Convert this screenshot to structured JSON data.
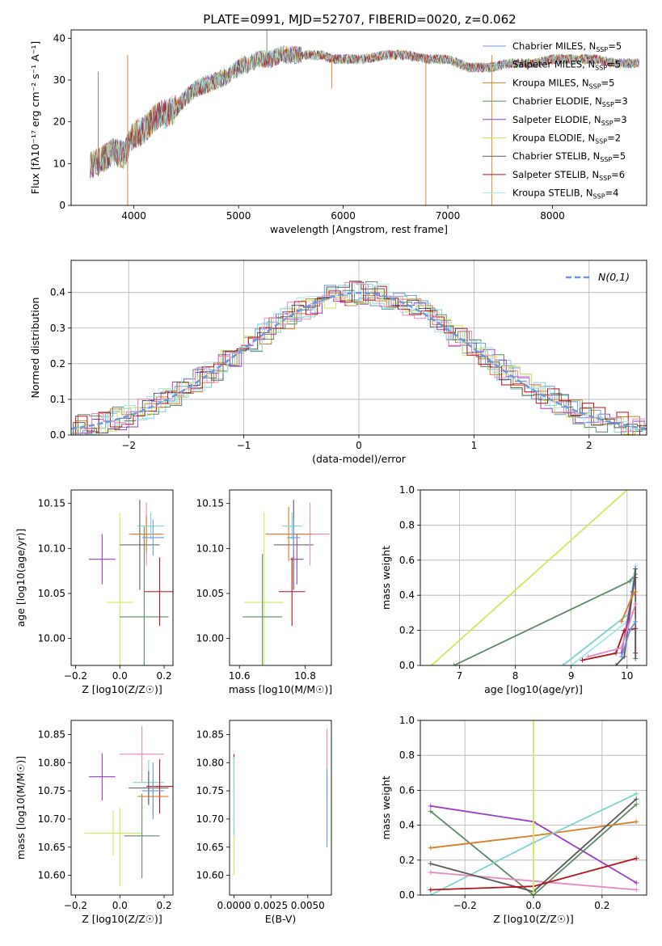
{
  "title": "PLATE=0991, MJD=52707, FIBERID=0020, z=0.062",
  "colors": [
    "#6a9bd8",
    "#7fd3d0",
    "#d57f2a",
    "#5e8a67",
    "#9b3fbf",
    "#cfe85a",
    "#5a5a5a",
    "#b5141b",
    "#a5e6f0",
    "#e48bbf"
  ],
  "chart_data": [
    {
      "id": "spectrum",
      "type": "line",
      "xlabel": "wavelength [Angstrom, rest frame]",
      "ylabel": "Flux [fλ10⁻¹⁷ erg cm⁻² s⁻¹ A⁻¹]",
      "xlim": [
        3400,
        8900
      ],
      "ylim": [
        0,
        42
      ],
      "xticks": [
        "4000",
        "5000",
        "6000",
        "7000",
        "8000"
      ],
      "yticks": [
        "0",
        "10",
        "20",
        "30",
        "40"
      ],
      "continuum": {
        "x": [
          3600,
          3700,
          3800,
          3900,
          4000,
          4100,
          4200,
          4300,
          4400,
          4500,
          4600,
          4700,
          4800,
          4900,
          5000,
          5100,
          5200,
          5300,
          5400,
          5500,
          5600,
          5700,
          5800,
          5900,
          6000,
          6200,
          6400,
          6600,
          6800,
          7000,
          7200,
          7400,
          7600,
          7800,
          8000,
          8200,
          8400,
          8600,
          8800
        ],
        "y": [
          10,
          11,
          13,
          12,
          17,
          18,
          21,
          22,
          23,
          26,
          28,
          29,
          30,
          31,
          33,
          34,
          35,
          35,
          36,
          36,
          36,
          36,
          36,
          35,
          35,
          35,
          36,
          36,
          35,
          35,
          33,
          33,
          34,
          34,
          35,
          35,
          35,
          34,
          34
        ]
      },
      "legend": [
        {
          "label": "Chabrier MILES, N_SSP=5",
          "color": "#6a9bd8"
        },
        {
          "label": "Salpeter MILES, N_SSP=5",
          "color": "#7fd3d0"
        },
        {
          "label": "Kroupa MILES, N_SSP=5",
          "color": "#d57f2a"
        },
        {
          "label": "Chabrier ELODIE, N_SSP=3",
          "color": "#5e8a67"
        },
        {
          "label": "Salpeter ELODIE, N_SSP=3",
          "color": "#9b3fbf"
        },
        {
          "label": "Kroupa ELODIE, N_SSP=2",
          "color": "#cfe85a"
        },
        {
          "label": "Chabrier STELIB, N_SSP=5",
          "color": "#5a5a5a"
        },
        {
          "label": "Salpeter STELIB, N_SSP=6",
          "color": "#b5141b"
        },
        {
          "label": "Kroupa STELIB, N_SSP=4",
          "color": "#a5e6f0"
        }
      ]
    },
    {
      "id": "residuals",
      "type": "histogram",
      "xlabel": "(data-model)/error",
      "ylabel": "Normed distribution",
      "xlim": [
        -2.5,
        2.5
      ],
      "ylim": [
        0,
        0.49
      ],
      "xticks": [
        "-2",
        "-1",
        "0",
        "1",
        "2"
      ],
      "yticks": [
        "0.0",
        "0.1",
        "0.2",
        "0.3",
        "0.4"
      ],
      "grid": true,
      "legend_label": "N(0,1)",
      "legend_position": "top-right"
    },
    {
      "id": "age-vs-Z",
      "type": "scatter",
      "xlabel": "Z [log10(Z/Z☉)]",
      "ylabel": "age  [log10(age/yr)]",
      "xlim": [
        -0.22,
        0.24
      ],
      "ylim": [
        9.97,
        10.165
      ],
      "xticks": [
        "-0.2",
        "0.0",
        "0.2"
      ],
      "yticks": [
        "10.00",
        "10.05",
        "10.10",
        "10.15"
      ],
      "points": [
        {
          "x": -0.08,
          "y": 10.088,
          "xe": 0.06,
          "ye": 0.028,
          "c": 4
        },
        {
          "x": 0.0,
          "y": 10.04,
          "xe": 0.06,
          "ye": 0.1,
          "c": 5
        },
        {
          "x": 0.11,
          "y": 10.024,
          "xe": 0.11,
          "ye": 0.1,
          "c": 3
        },
        {
          "x": 0.09,
          "y": 10.104,
          "xe": 0.09,
          "ye": 0.05,
          "c": 6
        },
        {
          "x": 0.12,
          "y": 10.116,
          "xe": 0.08,
          "ye": 0.035,
          "c": 9
        },
        {
          "x": 0.12,
          "y": 10.116,
          "xe": 0.07,
          "ye": 0.02,
          "c": 2
        },
        {
          "x": 0.14,
          "y": 10.125,
          "xe": 0.06,
          "ye": 0.015,
          "c": 1
        },
        {
          "x": 0.18,
          "y": 10.052,
          "xe": 0.07,
          "ye": 0.038,
          "c": 7
        },
        {
          "x": 0.15,
          "y": 10.112,
          "xe": 0.05,
          "ye": 0.02,
          "c": 0
        }
      ]
    },
    {
      "id": "age-vs-mass",
      "type": "scatter",
      "xlabel": "mass [log10(M/M☉)]",
      "ylabel": "",
      "xlim": [
        10.57,
        10.88
      ],
      "ylim": [
        9.97,
        10.165
      ],
      "xticks": [
        "10.6",
        "10.8"
      ],
      "yticks": [
        "10.00",
        "10.05",
        "10.10",
        "10.15"
      ],
      "points": [
        {
          "x": 10.675,
          "y": 10.04,
          "xe": 0.06,
          "ye": 0.1,
          "c": 5
        },
        {
          "x": 10.67,
          "y": 10.024,
          "xe": 0.06,
          "ye": 0.07,
          "c": 3
        },
        {
          "x": 10.765,
          "y": 10.104,
          "xe": 0.06,
          "ye": 0.05,
          "c": 6
        },
        {
          "x": 10.815,
          "y": 10.116,
          "xe": 0.06,
          "ye": 0.035,
          "c": 9
        },
        {
          "x": 10.75,
          "y": 10.116,
          "xe": 0.07,
          "ye": 0.03,
          "c": 2
        },
        {
          "x": 10.775,
          "y": 10.088,
          "xe": 0.02,
          "ye": 0.028,
          "c": 4
        },
        {
          "x": 10.76,
          "y": 10.052,
          "xe": 0.04,
          "ye": 0.038,
          "c": 7
        },
        {
          "x": 10.76,
          "y": 10.125,
          "xe": 0.03,
          "ye": 0.015,
          "c": 1
        },
        {
          "x": 10.765,
          "y": 10.112,
          "xe": 0.02,
          "ye": 0.02,
          "c": 0
        }
      ]
    },
    {
      "id": "mass-weight-vs-age",
      "type": "line",
      "xlabel": "age  [log10(age/yr)]",
      "ylabel": "mass weight",
      "xlim": [
        6.3,
        10.35
      ],
      "ylim": [
        0,
        1.0
      ],
      "xticks": [
        "7",
        "8",
        "9",
        "10"
      ],
      "yticks": [
        "0.0",
        "0.2",
        "0.4",
        "0.6",
        "0.8",
        "1.0"
      ],
      "grid": true,
      "series": [
        {
          "c": 5,
          "x": [
            6.5,
            10.0
          ],
          "y": [
            0.0,
            1.0
          ]
        },
        {
          "c": 3,
          "x": [
            6.9,
            10.05,
            10.15
          ],
          "y": [
            0.0,
            0.48,
            0.52
          ]
        },
        {
          "c": 1,
          "x": [
            8.85,
            10.05,
            10.15
          ],
          "y": [
            0.0,
            0.3,
            0.55
          ]
        },
        {
          "c": 8,
          "x": [
            9.0,
            10.0,
            10.15
          ],
          "y": [
            0.0,
            0.25,
            0.57
          ]
        },
        {
          "c": 4,
          "x": [
            9.9,
            10.1,
            10.15
          ],
          "y": [
            0.07,
            0.42,
            0.5
          ]
        },
        {
          "c": 7,
          "x": [
            9.2,
            9.8,
            9.95,
            10.15,
            10.15
          ],
          "y": [
            0.03,
            0.07,
            0.2,
            0.21,
            0.07
          ]
        },
        {
          "c": 6,
          "x": [
            9.8,
            9.95,
            10.15,
            10.15
          ],
          "y": [
            0.0,
            0.05,
            0.55,
            0.04
          ]
        },
        {
          "c": 9,
          "x": [
            9.3,
            9.9,
            10.1,
            10.15
          ],
          "y": [
            0.05,
            0.1,
            0.3,
            0.35
          ]
        },
        {
          "c": 2,
          "x": [
            9.9,
            10.1,
            10.15
          ],
          "y": [
            0.25,
            0.4,
            0.42
          ]
        },
        {
          "c": 0,
          "x": [
            9.9,
            10.05,
            10.15
          ],
          "y": [
            0.05,
            0.2,
            0.25
          ]
        }
      ]
    },
    {
      "id": "mass-vs-Z",
      "type": "scatter",
      "xlabel": "Z [log10(Z/Z☉)]",
      "ylabel": "mass [log10(M/M☉)]",
      "xlim": [
        -0.22,
        0.24
      ],
      "ylim": [
        10.565,
        10.875
      ],
      "xticks": [
        "-0.2",
        "0.0",
        "0.2"
      ],
      "yticks": [
        "10.60",
        "10.65",
        "10.70",
        "10.75",
        "10.80",
        "10.85"
      ],
      "points": [
        {
          "x": -0.08,
          "y": 10.775,
          "xe": 0.06,
          "ye": 0.042,
          "c": 4
        },
        {
          "x": 0.1,
          "y": 10.815,
          "xe": 0.1,
          "ye": 0.05,
          "c": 9
        },
        {
          "x": -0.03,
          "y": 10.675,
          "xe": 0.13,
          "ye": 0.04,
          "c": 5
        },
        {
          "x": 0.0,
          "y": 10.65,
          "xe": 0.0,
          "ye": 0.07,
          "c": 5
        },
        {
          "x": 0.1,
          "y": 10.67,
          "xe": 0.08,
          "ye": 0.075,
          "c": 3
        },
        {
          "x": 0.13,
          "y": 10.765,
          "xe": 0.07,
          "ye": 0.04,
          "c": 1
        },
        {
          "x": 0.13,
          "y": 10.755,
          "xe": 0.09,
          "ye": 0.03,
          "c": 6
        },
        {
          "x": 0.18,
          "y": 10.758,
          "xe": 0.06,
          "ye": 0.048,
          "c": 7
        },
        {
          "x": 0.15,
          "y": 10.74,
          "xe": 0.07,
          "ye": 0.03,
          "c": 2
        },
        {
          "x": 0.15,
          "y": 10.75,
          "xe": 0.05,
          "ye": 0.05,
          "c": 0
        }
      ]
    },
    {
      "id": "mass-vs-ebv",
      "type": "scatter",
      "xlabel": "E(B-V)",
      "ylabel": "",
      "xlim": [
        -0.0003,
        0.0066
      ],
      "ylim": [
        10.565,
        10.875
      ],
      "xticks": [
        "0.0000",
        "0.0025",
        "0.0050"
      ],
      "yticks": [
        "10.60",
        "10.65",
        "10.70",
        "10.75",
        "10.80",
        "10.85"
      ],
      "points": [
        {
          "x": 0.0,
          "y": 10.785,
          "xe": 0,
          "ye": 0.03,
          "c": 7
        },
        {
          "x": 0.0,
          "y": 10.7,
          "xe": 0,
          "ye": 0.1,
          "c": 5
        },
        {
          "x": 0.0,
          "y": 10.74,
          "xe": 0,
          "ye": 0.07,
          "c": 1
        },
        {
          "x": 0.0063,
          "y": 10.8,
          "xe": 0,
          "ye": 0.06,
          "c": 9
        },
        {
          "x": 0.0063,
          "y": 10.72,
          "xe": 0,
          "ye": 0.07,
          "c": 0
        }
      ]
    },
    {
      "id": "mass-weight-vs-Z",
      "type": "line",
      "xlabel": "Z [log10(Z/Z☉)]",
      "ylabel": "mass weight",
      "xlim": [
        -0.33,
        0.33
      ],
      "ylim": [
        0,
        1.0
      ],
      "xticks": [
        "-0.2",
        "0.0",
        "0.2"
      ],
      "yticks": [
        "0.0",
        "0.2",
        "0.4",
        "0.6",
        "0.8",
        "1.0"
      ],
      "grid": true,
      "series": [
        {
          "c": 4,
          "x": [
            -0.3,
            0.0,
            0.3
          ],
          "y": [
            0.51,
            0.42,
            0.07
          ]
        },
        {
          "c": 3,
          "x": [
            -0.3,
            0.0,
            0.3
          ],
          "y": [
            0.48,
            0.0,
            0.52
          ]
        },
        {
          "c": 2,
          "x": [
            -0.3,
            0.0,
            0.3
          ],
          "y": [
            0.27,
            0.34,
            0.42
          ]
        },
        {
          "c": 1,
          "x": [
            -0.3,
            0.0,
            0.3
          ],
          "y": [
            0.0,
            0.3,
            0.58
          ]
        },
        {
          "c": 9,
          "x": [
            -0.3,
            0.0,
            0.3
          ],
          "y": [
            0.13,
            0.08,
            0.03
          ]
        },
        {
          "c": 6,
          "x": [
            -0.3,
            0.0,
            0.3
          ],
          "y": [
            0.18,
            0.02,
            0.55
          ]
        },
        {
          "c": 7,
          "x": [
            -0.3,
            0.0,
            0.3
          ],
          "y": [
            0.03,
            0.05,
            0.21
          ]
        },
        {
          "c": 5,
          "x": [
            0.0,
            0.0
          ],
          "y": [
            0.0,
            1.0
          ]
        }
      ]
    }
  ]
}
